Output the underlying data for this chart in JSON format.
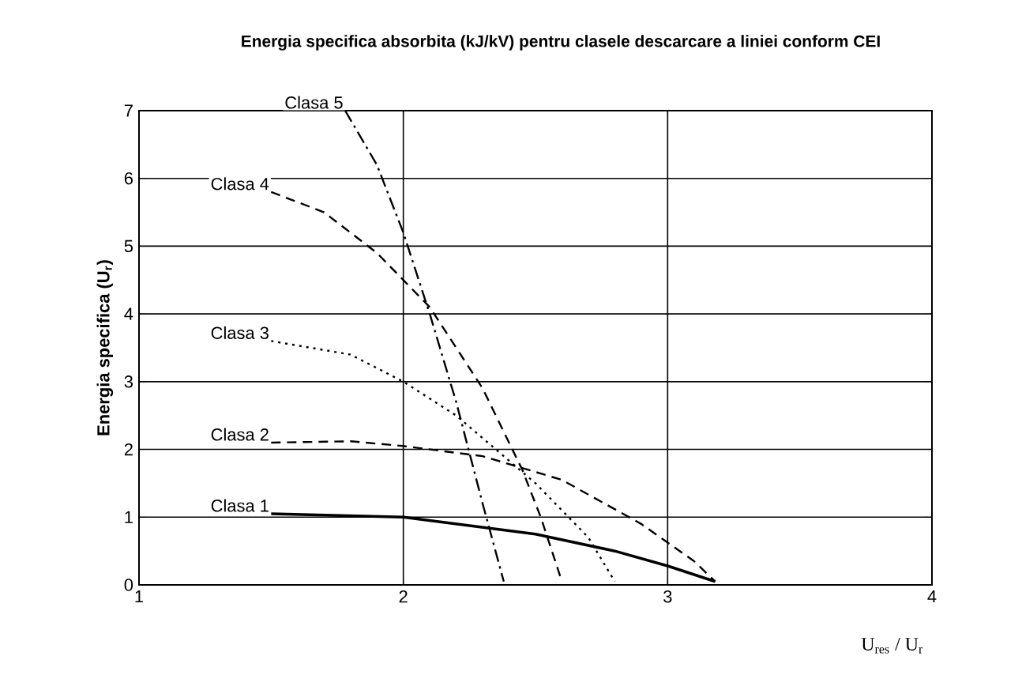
{
  "chart_data": {
    "type": "line",
    "title": "Energia specifica absorbita (kJ/kV) pentru clasele descarcare a liniei conform CEI",
    "xlabel": "U$_{res}$ / U$_{r}$",
    "ylabel": "Energia specifica (U$_{r}$)",
    "xlim": [
      1,
      4
    ],
    "ylim": [
      0,
      7
    ],
    "xticks": [
      1,
      2,
      3,
      4
    ],
    "yticks": [
      0,
      1,
      2,
      3,
      4,
      5,
      6,
      7
    ],
    "grid": true,
    "marker": "none",
    "series": [
      {
        "name": "Clasa 1",
        "color": "#000000",
        "line_style": "solid",
        "x": [
          1.5,
          2.0,
          2.5,
          2.8,
          3.0,
          3.18
        ],
        "values": [
          1.05,
          1.0,
          0.75,
          0.5,
          0.28,
          0.05
        ]
      },
      {
        "name": "Clasa 2",
        "color": "#000000",
        "line_style": "dashed",
        "x": [
          1.5,
          1.8,
          2.0,
          2.3,
          2.6,
          2.9,
          3.1,
          3.18
        ],
        "values": [
          2.1,
          2.12,
          2.05,
          1.9,
          1.55,
          0.9,
          0.35,
          0.05
        ]
      },
      {
        "name": "Clasa 3",
        "color": "#000000",
        "line_style": "dotted",
        "x": [
          1.5,
          1.8,
          2.0,
          2.2,
          2.5,
          2.7,
          2.8
        ],
        "values": [
          3.6,
          3.4,
          3.0,
          2.5,
          1.5,
          0.7,
          0.05
        ]
      },
      {
        "name": "Clasa 4",
        "color": "#000000",
        "line_style": "dashed",
        "x": [
          1.5,
          1.7,
          1.9,
          2.1,
          2.3,
          2.45,
          2.52,
          2.6
        ],
        "values": [
          5.8,
          5.5,
          4.9,
          4.1,
          2.9,
          1.7,
          1.0,
          0.05
        ]
      },
      {
        "name": "Clasa 5",
        "color": "#000000",
        "line_style": "dashdot",
        "x": [
          1.78,
          1.9,
          2.0,
          2.1,
          2.2,
          2.3,
          2.38
        ],
        "values": [
          7.0,
          6.2,
          5.2,
          4.0,
          2.7,
          1.2,
          0.05
        ]
      }
    ]
  }
}
